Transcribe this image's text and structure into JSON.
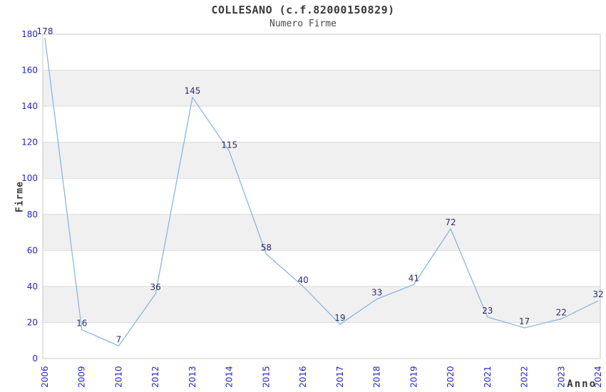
{
  "header": {
    "title": "COLLESANO (c.f.82000150829)",
    "subtitle": "Numero Firme"
  },
  "chart_data": {
    "type": "line",
    "title": "COLLESANO (c.f.82000150829)",
    "subtitle": "Numero Firme",
    "xlabel": "Anno",
    "ylabel": "Firme",
    "categories": [
      "2006",
      "2009",
      "2010",
      "2012",
      "2013",
      "2014",
      "2015",
      "2016",
      "2017",
      "2018",
      "2019",
      "2020",
      "2021",
      "2022",
      "2023",
      "2024"
    ],
    "values": [
      178,
      16,
      7,
      36,
      145,
      115,
      58,
      40,
      19,
      33,
      41,
      72,
      23,
      17,
      22,
      32
    ],
    "ylim": [
      0,
      180
    ],
    "ytick_step": 20,
    "grid": true,
    "legend": "none",
    "point_labels": true,
    "banded_background": true,
    "x_tick_rotation": -90,
    "colors": {
      "line": "#7fb2e3",
      "tick_label": "#2424c8",
      "data_label": "#2b2b6e",
      "band": "#f0f0f0",
      "gridline": "#dddddd",
      "border": "#c9c9c9",
      "title": "#3a3a3a",
      "background": "#ffffff"
    }
  }
}
